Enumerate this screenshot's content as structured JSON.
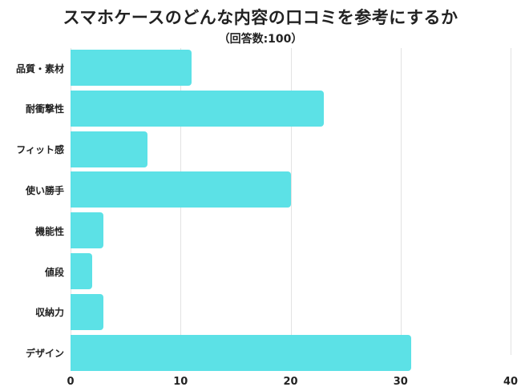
{
  "chart_data": {
    "type": "bar",
    "orientation": "horizontal",
    "title": "スマホケースのどんな内容の口コミを参考にするか",
    "subtitle": "（回答数:100）",
    "categories": [
      "品質・素材",
      "耐衝撃性",
      "フィット感",
      "使い勝手",
      "機能性",
      "値段",
      "収納力",
      "デザイン"
    ],
    "values": [
      11,
      23,
      7,
      20,
      3,
      2,
      3,
      31
    ],
    "xlabel": "",
    "ylabel": "",
    "xlim": [
      0,
      40
    ],
    "xticks": [
      "0",
      "10",
      "20",
      "30",
      "40"
    ],
    "grid": true,
    "legend": null,
    "bar_color": "#5ce1e6"
  }
}
